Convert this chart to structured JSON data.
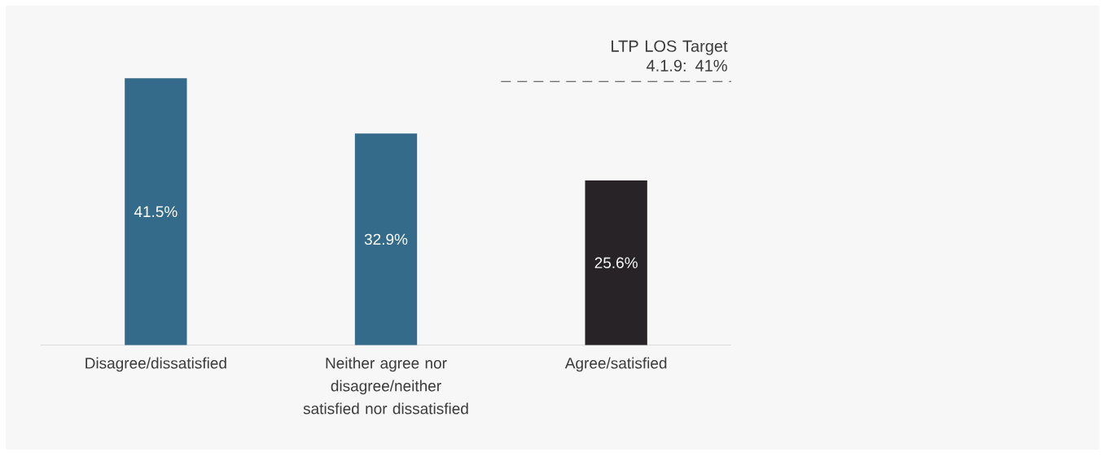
{
  "chart_data": {
    "type": "bar",
    "categories": [
      "Disagree/dissatisfied",
      "Neither agree nor disagree/neither satisfied nor dissatisfied",
      "Agree/satisfied"
    ],
    "values": [
      41.5,
      32.9,
      25.6
    ],
    "colors": [
      "#356b8a",
      "#356b8a",
      "#272326"
    ],
    "value_labels": [
      "41.5%",
      "32.9%",
      "25.6%"
    ],
    "tick_labels": "x",
    "ref_lines": [
      {
        "axis": "y",
        "value": 41,
        "label": "LTP LOS Target 4.1.9:  41%",
        "color": "#444444",
        "line_style": "dashed"
      }
    ]
  }
}
